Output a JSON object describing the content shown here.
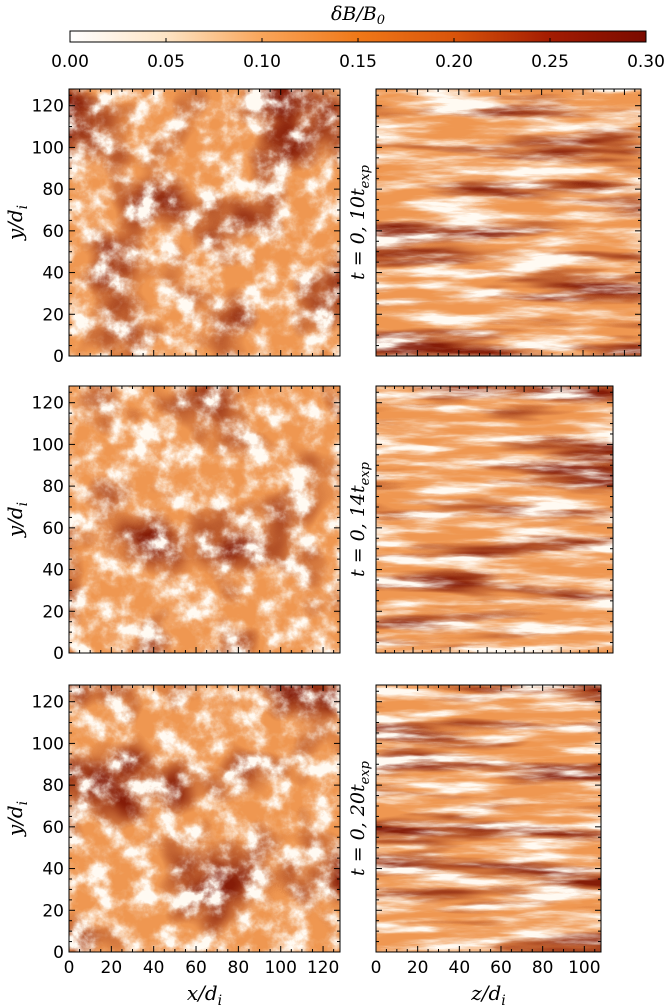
{
  "colorbar": {
    "label": "δB/B₀",
    "ticks": [
      "0.00",
      "0.05",
      "0.10",
      "0.15",
      "0.20",
      "0.25",
      "0.30"
    ],
    "range": [
      0.0,
      0.3
    ],
    "colors": [
      "#ffffff",
      "#fde4c4",
      "#f9a55a",
      "#f07818",
      "#d9540a",
      "#a31c02",
      "#7a0a00"
    ]
  },
  "chart_data": [
    {
      "type": "heatmap",
      "panel": "xy",
      "row": 1,
      "xlabel": "",
      "ylabel": "y/d_i",
      "xlim": [
        0,
        128
      ],
      "ylim": [
        0,
        128
      ],
      "yticks": [
        "0",
        "20",
        "40",
        "60",
        "80",
        "100",
        "120"
      ],
      "color_range": [
        0.0,
        0.3
      ]
    },
    {
      "type": "heatmap",
      "panel": "yz",
      "row": 1,
      "time_label": "t = 0, 10t_exp",
      "xlim": [
        0,
        128
      ],
      "ylim": [
        0,
        128
      ],
      "color_range": [
        0.0,
        0.3
      ]
    },
    {
      "type": "heatmap",
      "panel": "xy",
      "row": 2,
      "xlabel": "",
      "ylabel": "y/d_i",
      "xlim": [
        0,
        128
      ],
      "ylim": [
        0,
        128
      ],
      "yticks": [
        "0",
        "20",
        "40",
        "60",
        "80",
        "100",
        "120"
      ],
      "color_range": [
        0.0,
        0.3
      ]
    },
    {
      "type": "heatmap",
      "panel": "yz",
      "row": 2,
      "time_label": "t = 0, 14t_exp",
      "xlim": [
        0,
        128
      ],
      "ylim": [
        0,
        128
      ],
      "color_range": [
        0.0,
        0.3
      ]
    },
    {
      "type": "heatmap",
      "panel": "xy",
      "row": 3,
      "xlabel": "x/d_i",
      "ylabel": "y/d_i",
      "xlim": [
        0,
        128
      ],
      "ylim": [
        0,
        128
      ],
      "xticks": [
        "0",
        "20",
        "40",
        "60",
        "80",
        "100",
        "120"
      ],
      "yticks": [
        "0",
        "20",
        "40",
        "60",
        "80",
        "100",
        "120"
      ],
      "color_range": [
        0.0,
        0.3
      ]
    },
    {
      "type": "heatmap",
      "panel": "yz",
      "row": 3,
      "time_label": "t = 0, 20t_exp",
      "xlabel": "z/d_i",
      "xlim": [
        0,
        108
      ],
      "ylim": [
        0,
        128
      ],
      "xticks": [
        "0",
        "20",
        "40",
        "60",
        "80",
        "100"
      ],
      "color_range": [
        0.0,
        0.3
      ]
    }
  ],
  "labels": {
    "ylabel": "y/d",
    "ylabel_sub": "i",
    "xlabel_x": "x/d",
    "xlabel_z": "z/d",
    "sub_i": "i",
    "time_prefix": "t = 0, ",
    "time_suffix_t": "t",
    "time_sub": "exp",
    "time_factors": [
      "10",
      "14",
      "20"
    ]
  }
}
